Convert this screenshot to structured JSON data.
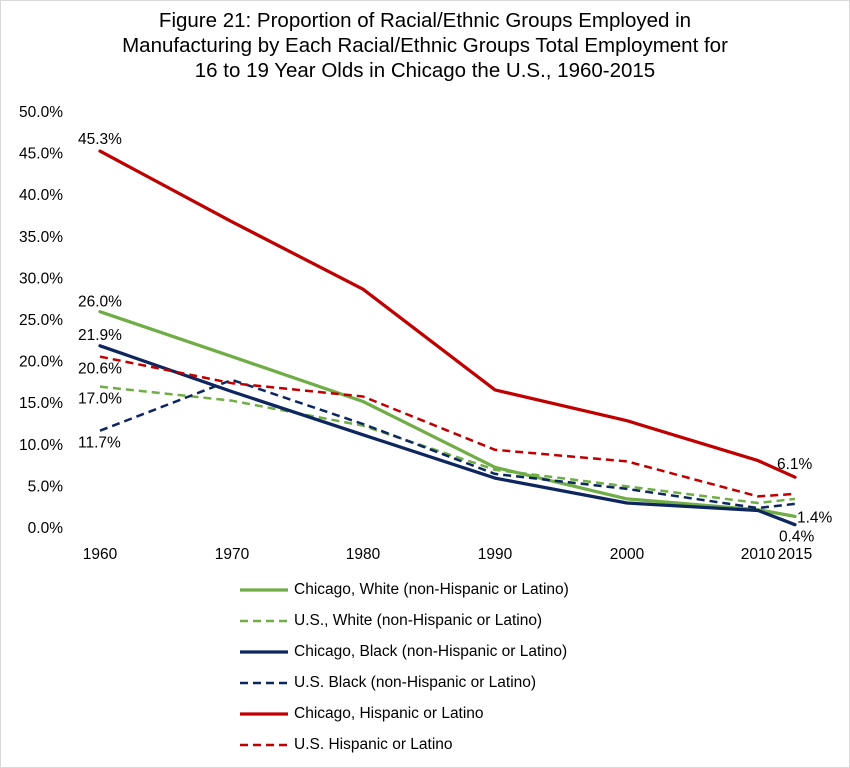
{
  "title_lines": [
    "Figure 21: Proportion of Racial/Ethnic Groups Employed in",
    "Manufacturing by Each Racial/Ethnic Groups Total Employment  for",
    "16 to 19 Year Olds in Chicago the U.S., 1960-2015"
  ],
  "chart_data": {
    "type": "line",
    "title": "Figure 21: Proportion of Racial/Ethnic Groups Employed in Manufacturing by Each Racial/Ethnic Groups Total Employment  for 16 to 19 Year Olds in Chicago the U.S., 1960-2015",
    "x": [
      1960,
      1970,
      1980,
      1990,
      2000,
      2010,
      2015
    ],
    "x_tick_labels": [
      "1960",
      "1970",
      "1980",
      "1990",
      "2000",
      "2010",
      "2015"
    ],
    "ylim": [
      0,
      50
    ],
    "y_ticks": [
      0,
      5,
      10,
      15,
      20,
      25,
      30,
      35,
      40,
      45,
      50
    ],
    "y_tick_labels": [
      "0.0%",
      "5.0%",
      "10.0%",
      "15.0%",
      "20.0%",
      "25.0%",
      "30.0%",
      "35.0%",
      "40.0%",
      "45.0%",
      "50.0%"
    ],
    "grid": false,
    "legend_position": "bottom",
    "series": [
      {
        "name": "Chicago, White (non-Hispanic or Latino)",
        "color": "#70ad47",
        "dash": "solid",
        "values": [
          26.0,
          20.6,
          15.2,
          7.3,
          3.5,
          2.2,
          1.4
        ]
      },
      {
        "name": "U.S., White (non-Hispanic or Latino)",
        "color": "#70ad47",
        "dash": "dashed",
        "values": [
          17.0,
          15.3,
          12.3,
          7.0,
          5.0,
          3.0,
          3.5
        ]
      },
      {
        "name": "Chicago, Black (non-Hispanic or Latino)",
        "color": "#0e2660",
        "dash": "solid",
        "values": [
          21.9,
          16.4,
          11.2,
          6.0,
          3.0,
          2.1,
          0.4
        ]
      },
      {
        "name": "U.S. Black (non-Hispanic or Latino)",
        "color": "#0e2660",
        "dash": "dashed",
        "values": [
          11.7,
          17.8,
          12.5,
          6.5,
          4.7,
          2.4,
          2.9
        ]
      },
      {
        "name": "Chicago, Hispanic or Latino",
        "color": "#c00000",
        "dash": "solid",
        "values": [
          45.3,
          36.8,
          28.7,
          16.6,
          12.9,
          8.1,
          6.1
        ]
      },
      {
        "name": "U.S. Hispanic or Latino",
        "color": "#c00000",
        "dash": "dashed",
        "values": [
          20.6,
          17.4,
          15.8,
          9.4,
          8.0,
          3.8,
          4.1
        ]
      }
    ],
    "data_labels": [
      {
        "text": "45.3%",
        "series": 4,
        "point": 0
      },
      {
        "text": "26.0%",
        "series": 0,
        "point": 0
      },
      {
        "text": "21.9%",
        "series": 2,
        "point": 0
      },
      {
        "text": "20.6%",
        "series": 5,
        "point": 0
      },
      {
        "text": "17.0%",
        "series": 1,
        "point": 0
      },
      {
        "text": "11.7%",
        "series": 3,
        "point": 0
      },
      {
        "text": "6.1%",
        "series": 4,
        "point": 6
      },
      {
        "text": "1.4%",
        "series": 0,
        "point": 6
      },
      {
        "text": "0.4%",
        "series": 2,
        "point": 6
      }
    ]
  }
}
